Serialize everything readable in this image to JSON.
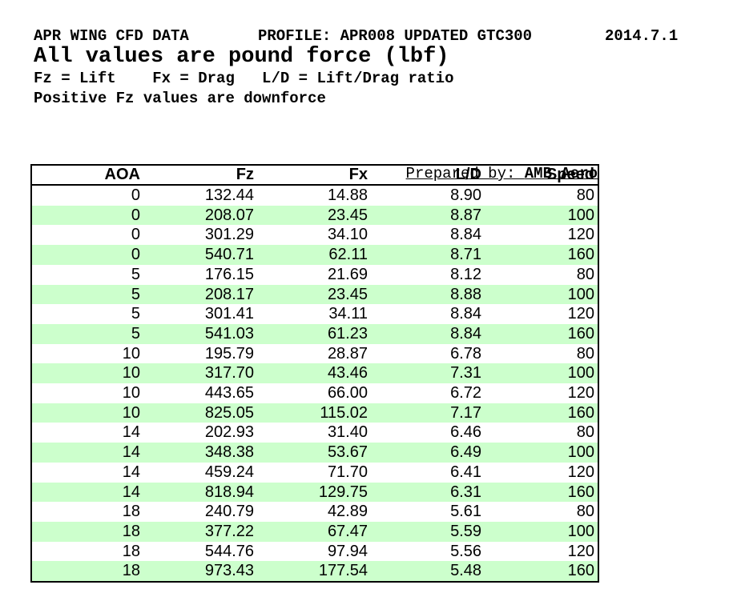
{
  "header": {
    "title": "APR WING CFD DATA",
    "profile": "PROFILE: APR008 UPDATED GTC300",
    "date": "2014.7.1",
    "subtitle": "All values are pound force (lbf)",
    "legend": "Fz = Lift    Fx = Drag   L/D = Lift/Drag ratio",
    "note": "Positive Fz values are downforce"
  },
  "prepared_by": {
    "label": "Prepared by: ",
    "value": "AMB Aero"
  },
  "table": {
    "columns": [
      "AOA",
      "Fz",
      "Fx",
      "L/D",
      "Speed"
    ],
    "rows": [
      [
        "0",
        "132.44",
        "14.88",
        "8.90",
        "80"
      ],
      [
        "0",
        "208.07",
        "23.45",
        "8.87",
        "100"
      ],
      [
        "0",
        "301.29",
        "34.10",
        "8.84",
        "120"
      ],
      [
        "0",
        "540.71",
        "62.11",
        "8.71",
        "160"
      ],
      [
        "5",
        "176.15",
        "21.69",
        "8.12",
        "80"
      ],
      [
        "5",
        "208.17",
        "23.45",
        "8.88",
        "100"
      ],
      [
        "5",
        "301.41",
        "34.11",
        "8.84",
        "120"
      ],
      [
        "5",
        "541.03",
        "61.23",
        "8.84",
        "160"
      ],
      [
        "10",
        "195.79",
        "28.87",
        "6.78",
        "80"
      ],
      [
        "10",
        "317.70",
        "43.46",
        "7.31",
        "100"
      ],
      [
        "10",
        "443.65",
        "66.00",
        "6.72",
        "120"
      ],
      [
        "10",
        "825.05",
        "115.02",
        "7.17",
        "160"
      ],
      [
        "14",
        "202.93",
        "31.40",
        "6.46",
        "80"
      ],
      [
        "14",
        "348.38",
        "53.67",
        "6.49",
        "100"
      ],
      [
        "14",
        "459.24",
        "71.70",
        "6.41",
        "120"
      ],
      [
        "14",
        "818.94",
        "129.75",
        "6.31",
        "160"
      ],
      [
        "18",
        "240.79",
        "42.89",
        "5.61",
        "80"
      ],
      [
        "18",
        "377.22",
        "67.47",
        "5.59",
        "100"
      ],
      [
        "18",
        "544.76",
        "97.94",
        "5.56",
        "120"
      ],
      [
        "18",
        "973.43",
        "177.54",
        "5.48",
        "160"
      ]
    ]
  },
  "colors": {
    "row_stripe_green": "#ccffcc",
    "border": "#000000",
    "text": "#000000",
    "background": "#ffffff"
  }
}
